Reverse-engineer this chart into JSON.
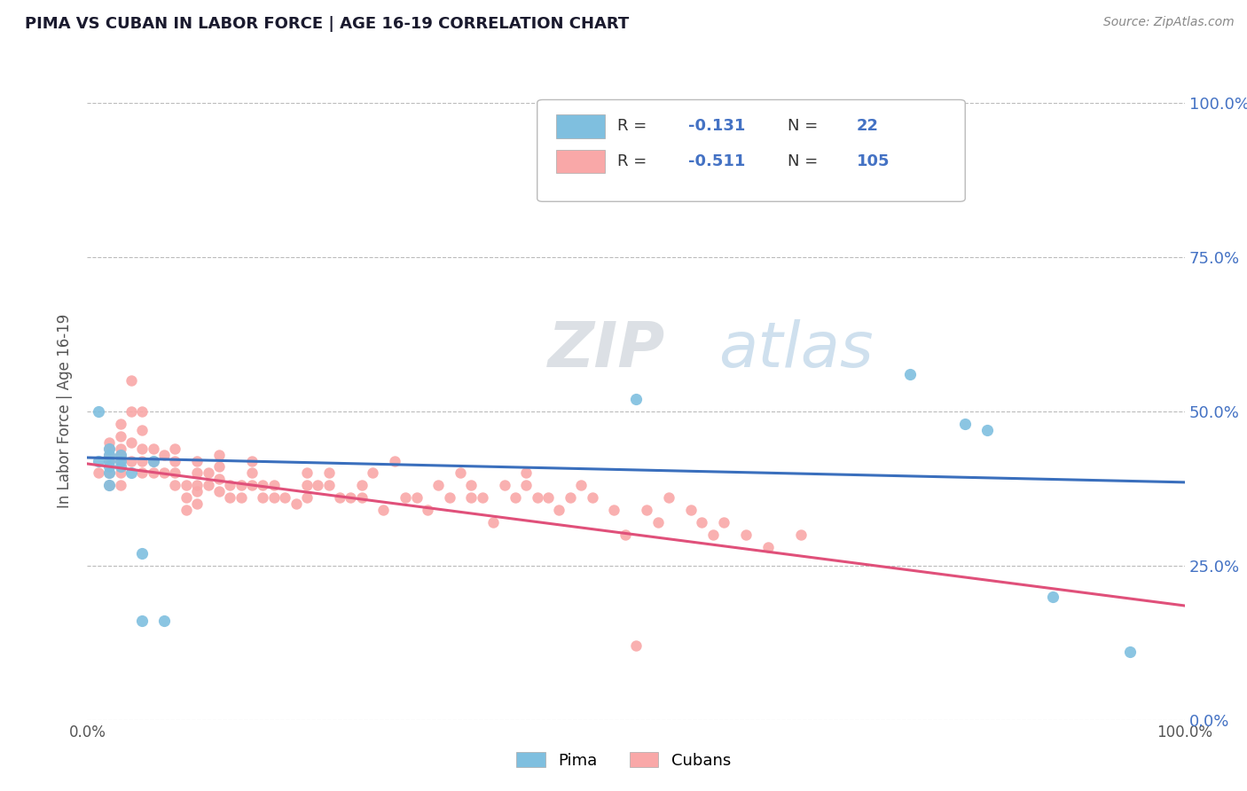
{
  "title": "PIMA VS CUBAN IN LABOR FORCE | AGE 16-19 CORRELATION CHART",
  "source_text": "Source: ZipAtlas.com",
  "ylabel": "In Labor Force | Age 16-19",
  "xlim": [
    0.0,
    1.0
  ],
  "ylim": [
    0.0,
    1.0
  ],
  "xtick_positions": [
    0.0,
    1.0
  ],
  "xtick_labels": [
    "0.0%",
    "100.0%"
  ],
  "ytick_values": [
    0.0,
    0.25,
    0.5,
    0.75,
    1.0
  ],
  "ytick_labels": [
    "0.0%",
    "25.0%",
    "50.0%",
    "75.0%",
    "100.0%"
  ],
  "pima_color": "#7fbfdf",
  "cuban_color": "#f9a8a8",
  "pima_line_color": "#3a6fbd",
  "cuban_line_color": "#e0507a",
  "pima_R": -0.131,
  "pima_N": 22,
  "cuban_R": -0.511,
  "cuban_N": 105,
  "background_color": "#ffffff",
  "grid_color": "#bbbbbb",
  "tick_color": "#4472c4",
  "pima_x": [
    0.01,
    0.01,
    0.02,
    0.02,
    0.02,
    0.02,
    0.02,
    0.02,
    0.03,
    0.03,
    0.03,
    0.04,
    0.05,
    0.05,
    0.06,
    0.07,
    0.5,
    0.75,
    0.8,
    0.82,
    0.88,
    0.95
  ],
  "pima_y": [
    0.5,
    0.42,
    0.43,
    0.44,
    0.42,
    0.41,
    0.4,
    0.38,
    0.43,
    0.42,
    0.41,
    0.4,
    0.27,
    0.16,
    0.42,
    0.16,
    0.52,
    0.56,
    0.48,
    0.47,
    0.2,
    0.11
  ],
  "cuban_x": [
    0.01,
    0.02,
    0.02,
    0.02,
    0.02,
    0.02,
    0.02,
    0.03,
    0.03,
    0.03,
    0.03,
    0.03,
    0.03,
    0.03,
    0.04,
    0.04,
    0.04,
    0.04,
    0.05,
    0.05,
    0.05,
    0.05,
    0.05,
    0.06,
    0.06,
    0.06,
    0.07,
    0.07,
    0.08,
    0.08,
    0.08,
    0.08,
    0.09,
    0.09,
    0.09,
    0.1,
    0.1,
    0.1,
    0.1,
    0.1,
    0.11,
    0.11,
    0.12,
    0.12,
    0.12,
    0.12,
    0.13,
    0.13,
    0.14,
    0.14,
    0.15,
    0.15,
    0.15,
    0.16,
    0.16,
    0.17,
    0.17,
    0.18,
    0.19,
    0.2,
    0.2,
    0.2,
    0.21,
    0.22,
    0.22,
    0.23,
    0.24,
    0.25,
    0.25,
    0.26,
    0.27,
    0.28,
    0.29,
    0.3,
    0.31,
    0.32,
    0.33,
    0.34,
    0.35,
    0.35,
    0.36,
    0.37,
    0.38,
    0.39,
    0.4,
    0.4,
    0.41,
    0.42,
    0.43,
    0.44,
    0.45,
    0.46,
    0.48,
    0.49,
    0.5,
    0.51,
    0.52,
    0.53,
    0.55,
    0.56,
    0.57,
    0.58,
    0.6,
    0.62,
    0.65
  ],
  "cuban_y": [
    0.4,
    0.44,
    0.45,
    0.43,
    0.42,
    0.4,
    0.38,
    0.48,
    0.46,
    0.44,
    0.43,
    0.42,
    0.4,
    0.38,
    0.55,
    0.5,
    0.45,
    0.42,
    0.5,
    0.47,
    0.44,
    0.42,
    0.4,
    0.44,
    0.42,
    0.4,
    0.43,
    0.4,
    0.44,
    0.42,
    0.4,
    0.38,
    0.38,
    0.36,
    0.34,
    0.42,
    0.4,
    0.38,
    0.37,
    0.35,
    0.4,
    0.38,
    0.43,
    0.41,
    0.39,
    0.37,
    0.38,
    0.36,
    0.38,
    0.36,
    0.42,
    0.4,
    0.38,
    0.38,
    0.36,
    0.38,
    0.36,
    0.36,
    0.35,
    0.4,
    0.38,
    0.36,
    0.38,
    0.4,
    0.38,
    0.36,
    0.36,
    0.38,
    0.36,
    0.4,
    0.34,
    0.42,
    0.36,
    0.36,
    0.34,
    0.38,
    0.36,
    0.4,
    0.38,
    0.36,
    0.36,
    0.32,
    0.38,
    0.36,
    0.4,
    0.38,
    0.36,
    0.36,
    0.34,
    0.36,
    0.38,
    0.36,
    0.34,
    0.3,
    0.12,
    0.34,
    0.32,
    0.36,
    0.34,
    0.32,
    0.3,
    0.32,
    0.3,
    0.28,
    0.3
  ]
}
